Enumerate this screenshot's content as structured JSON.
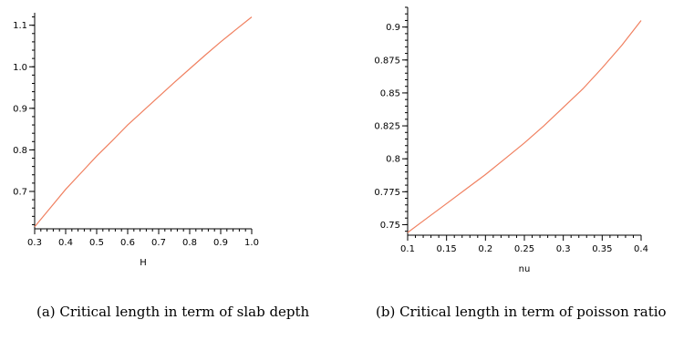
{
  "chart_data": [
    {
      "type": "line",
      "xlabel": "H",
      "ylabel": "",
      "xlim": [
        0.3,
        1.0
      ],
      "ylim": [
        0.61,
        1.13
      ],
      "xticks": [
        "0.3",
        "0.4",
        "0.5",
        "0.6",
        "0.7",
        "0.8",
        "0.9",
        "1.0"
      ],
      "yticks": [
        "0.7",
        "0.8",
        "0.9",
        "1.0",
        "1.1"
      ],
      "line_color": "#f08060",
      "x": [
        0.3,
        0.35,
        0.4,
        0.45,
        0.5,
        0.55,
        0.6,
        0.65,
        0.7,
        0.75,
        0.8,
        0.85,
        0.9,
        0.95,
        1.0
      ],
      "y": [
        0.615,
        0.66,
        0.705,
        0.745,
        0.785,
        0.822,
        0.86,
        0.894,
        0.928,
        0.962,
        0.995,
        1.028,
        1.06,
        1.09,
        1.12
      ],
      "caption": "(a) Critical length in term of slab depth"
    },
    {
      "type": "line",
      "xlabel": "nu",
      "ylabel": "",
      "xlim": [
        0.1,
        0.4
      ],
      "ylim": [
        0.742,
        0.915
      ],
      "xticks": [
        "0.1",
        "0.15",
        "0.2",
        "0.25",
        "0.3",
        "0.35",
        "0.4"
      ],
      "yticks": [
        "0.75",
        "0.775",
        "0.8",
        "0.825",
        "0.85",
        "0.875",
        "0.9"
      ],
      "line_color": "#f08060",
      "x": [
        0.1,
        0.125,
        0.15,
        0.175,
        0.2,
        0.225,
        0.25,
        0.275,
        0.3,
        0.325,
        0.35,
        0.375,
        0.4
      ],
      "y": [
        0.744,
        0.755,
        0.766,
        0.777,
        0.788,
        0.8,
        0.812,
        0.825,
        0.839,
        0.853,
        0.869,
        0.886,
        0.905
      ],
      "caption": "(b) Critical length in term of poisson ratio"
    }
  ]
}
